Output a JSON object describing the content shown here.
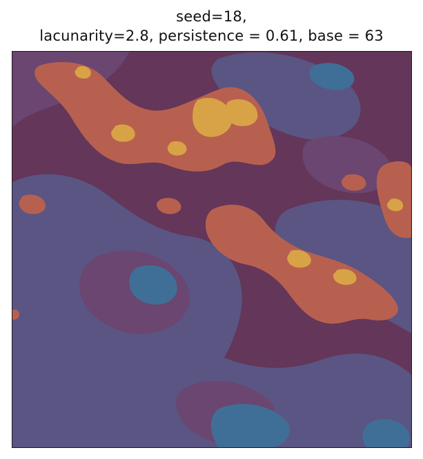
{
  "title": {
    "line1": "seed=18,",
    "line2": "lacunarity=2.8, persistence = 0.61, base = 63"
  },
  "image": {
    "colors": {
      "deep": "#3f6f97",
      "mid_blue": "#5a5583",
      "purple": "#6a4670",
      "dark": "#61345a",
      "orange": "#b8604f",
      "yellow": "#d8a347"
    }
  }
}
